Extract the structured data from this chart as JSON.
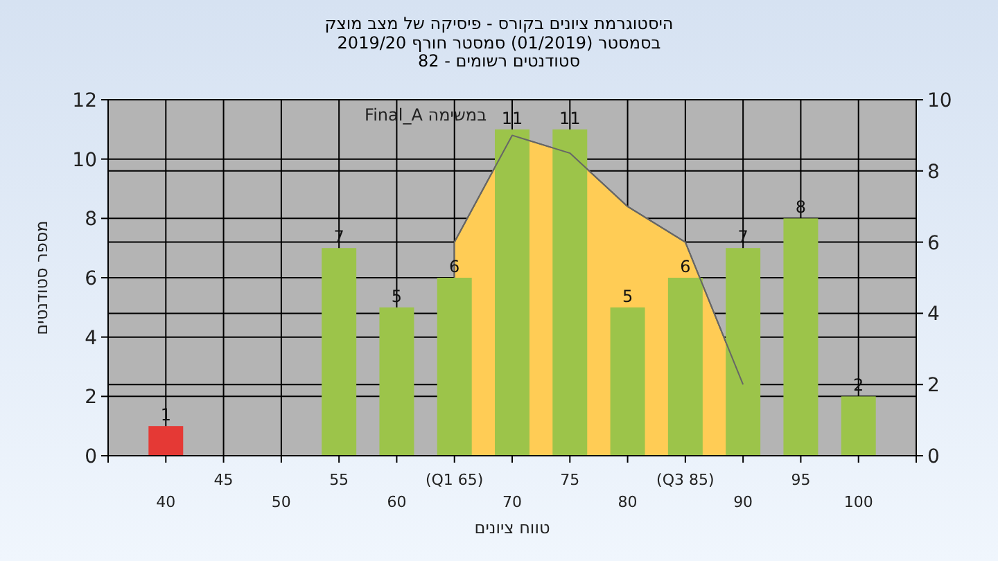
{
  "chart_data": {
    "type": "bar",
    "title": "היסטוגרמת ציונים בקורס - פיסיקה של מצב מוצק",
    "subtitle": "בסמסטר (01/2019) סמסטר חורף 2019/20\nסטודנטים רשומים - 82",
    "xlabel": "טווח ציונים",
    "ylabel": "מספר סטודנטים",
    "categories": [
      "40",
      "45",
      "50",
      "55",
      "60",
      "(Q1 65)",
      "70",
      "75",
      "80",
      "(Q3 85)",
      "90",
      "95",
      "100"
    ],
    "series": [
      {
        "value_labels": [
          "1",
          null,
          null,
          "7",
          "5",
          "6",
          "11",
          "11",
          "5",
          "6",
          "7",
          "8",
          "2"
        ],
        "colors": [
          "#e53935",
          "#9cc44a",
          "#9cc44a",
          "#9cc44a",
          "#9cc44a",
          "#9cc44a",
          "#9cc44a",
          "#9cc44a",
          "#9cc44a",
          "#9cc44a",
          "#9cc44a",
          "#9cc44a",
          "#9cc44a"
        ],
        "values": [
          1,
          null,
          null,
          7,
          5,
          6,
          11,
          11,
          5,
          6,
          7,
          8,
          2
        ]
      },
      {
        "type": "area",
        "name": "במשימה Final_A",
        "color": "#ffcc55",
        "axis": "y2",
        "values": [
          null,
          null,
          null,
          null,
          null,
          6,
          9,
          8.5,
          7,
          6,
          2,
          null,
          null
        ]
      }
    ],
    "ylim": [
      0,
      12
    ],
    "yticks": [
      0,
      2,
      4,
      6,
      8,
      10,
      12
    ],
    "y2lim": [
      0,
      10
    ],
    "y2ticks": [
      0,
      2,
      4,
      6,
      8,
      10
    ],
    "grid": true
  }
}
